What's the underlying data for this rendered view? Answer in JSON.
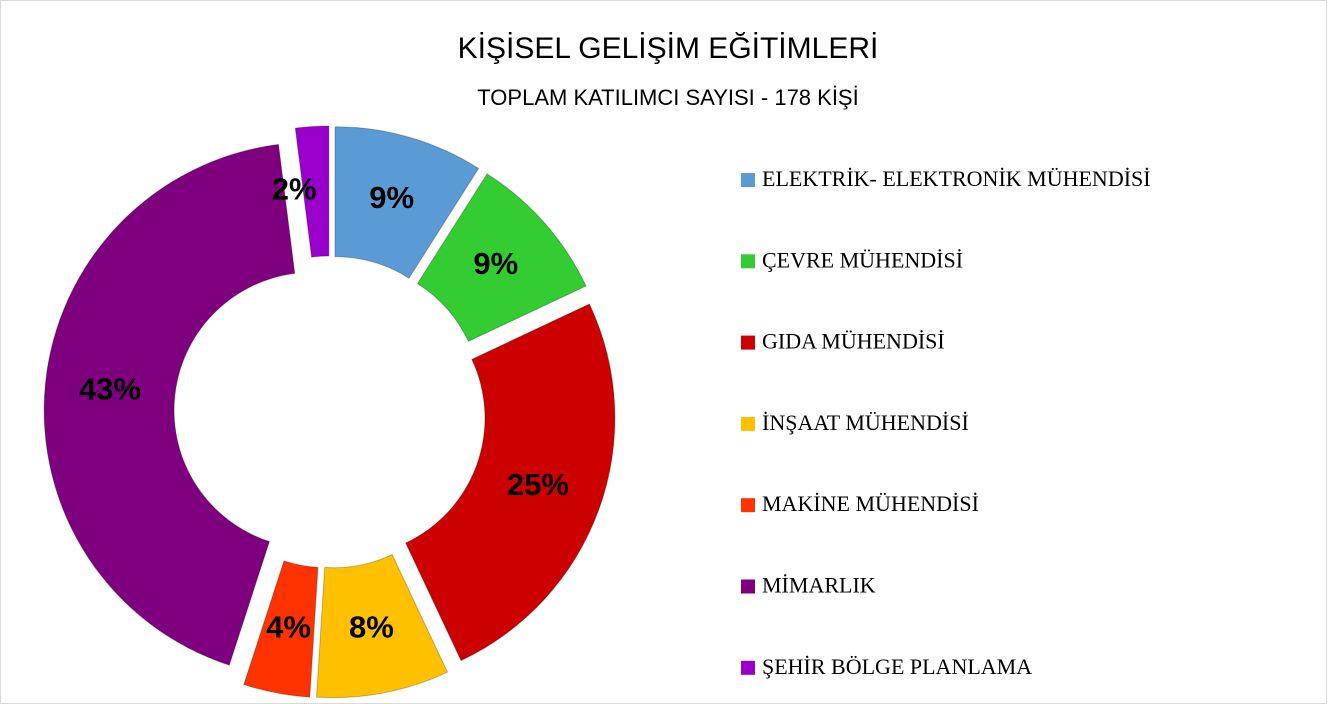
{
  "chart_data": {
    "type": "donut",
    "title": "KİŞİSEL GELİŞİM EĞİTİMLERİ",
    "subtitle": "TOPLAM KATILIMCI SAYISI - 178 KİŞİ",
    "categories": [
      "ELEKTRİK- ELEKTRONİK MÜHENDİSİ",
      "ÇEVRE MÜHENDİSİ",
      "GIDA MÜHENDİSİ",
      "İNŞAAT MÜHENDİSİ",
      "MAKİNE MÜHENDİSİ",
      "MİMARLIK",
      "ŞEHİR BÖLGE PLANLAMA"
    ],
    "values": [
      9,
      9,
      25,
      8,
      4,
      43,
      2
    ],
    "value_labels": [
      "9%",
      "9%",
      "25%",
      "8%",
      "4%",
      "43%",
      "2%"
    ],
    "colors": [
      "#5b9bd5",
      "#33cc33",
      "#cc0000",
      "#ffc000",
      "#ff3300",
      "#7f007f",
      "#9900cc"
    ],
    "legend": "right"
  }
}
